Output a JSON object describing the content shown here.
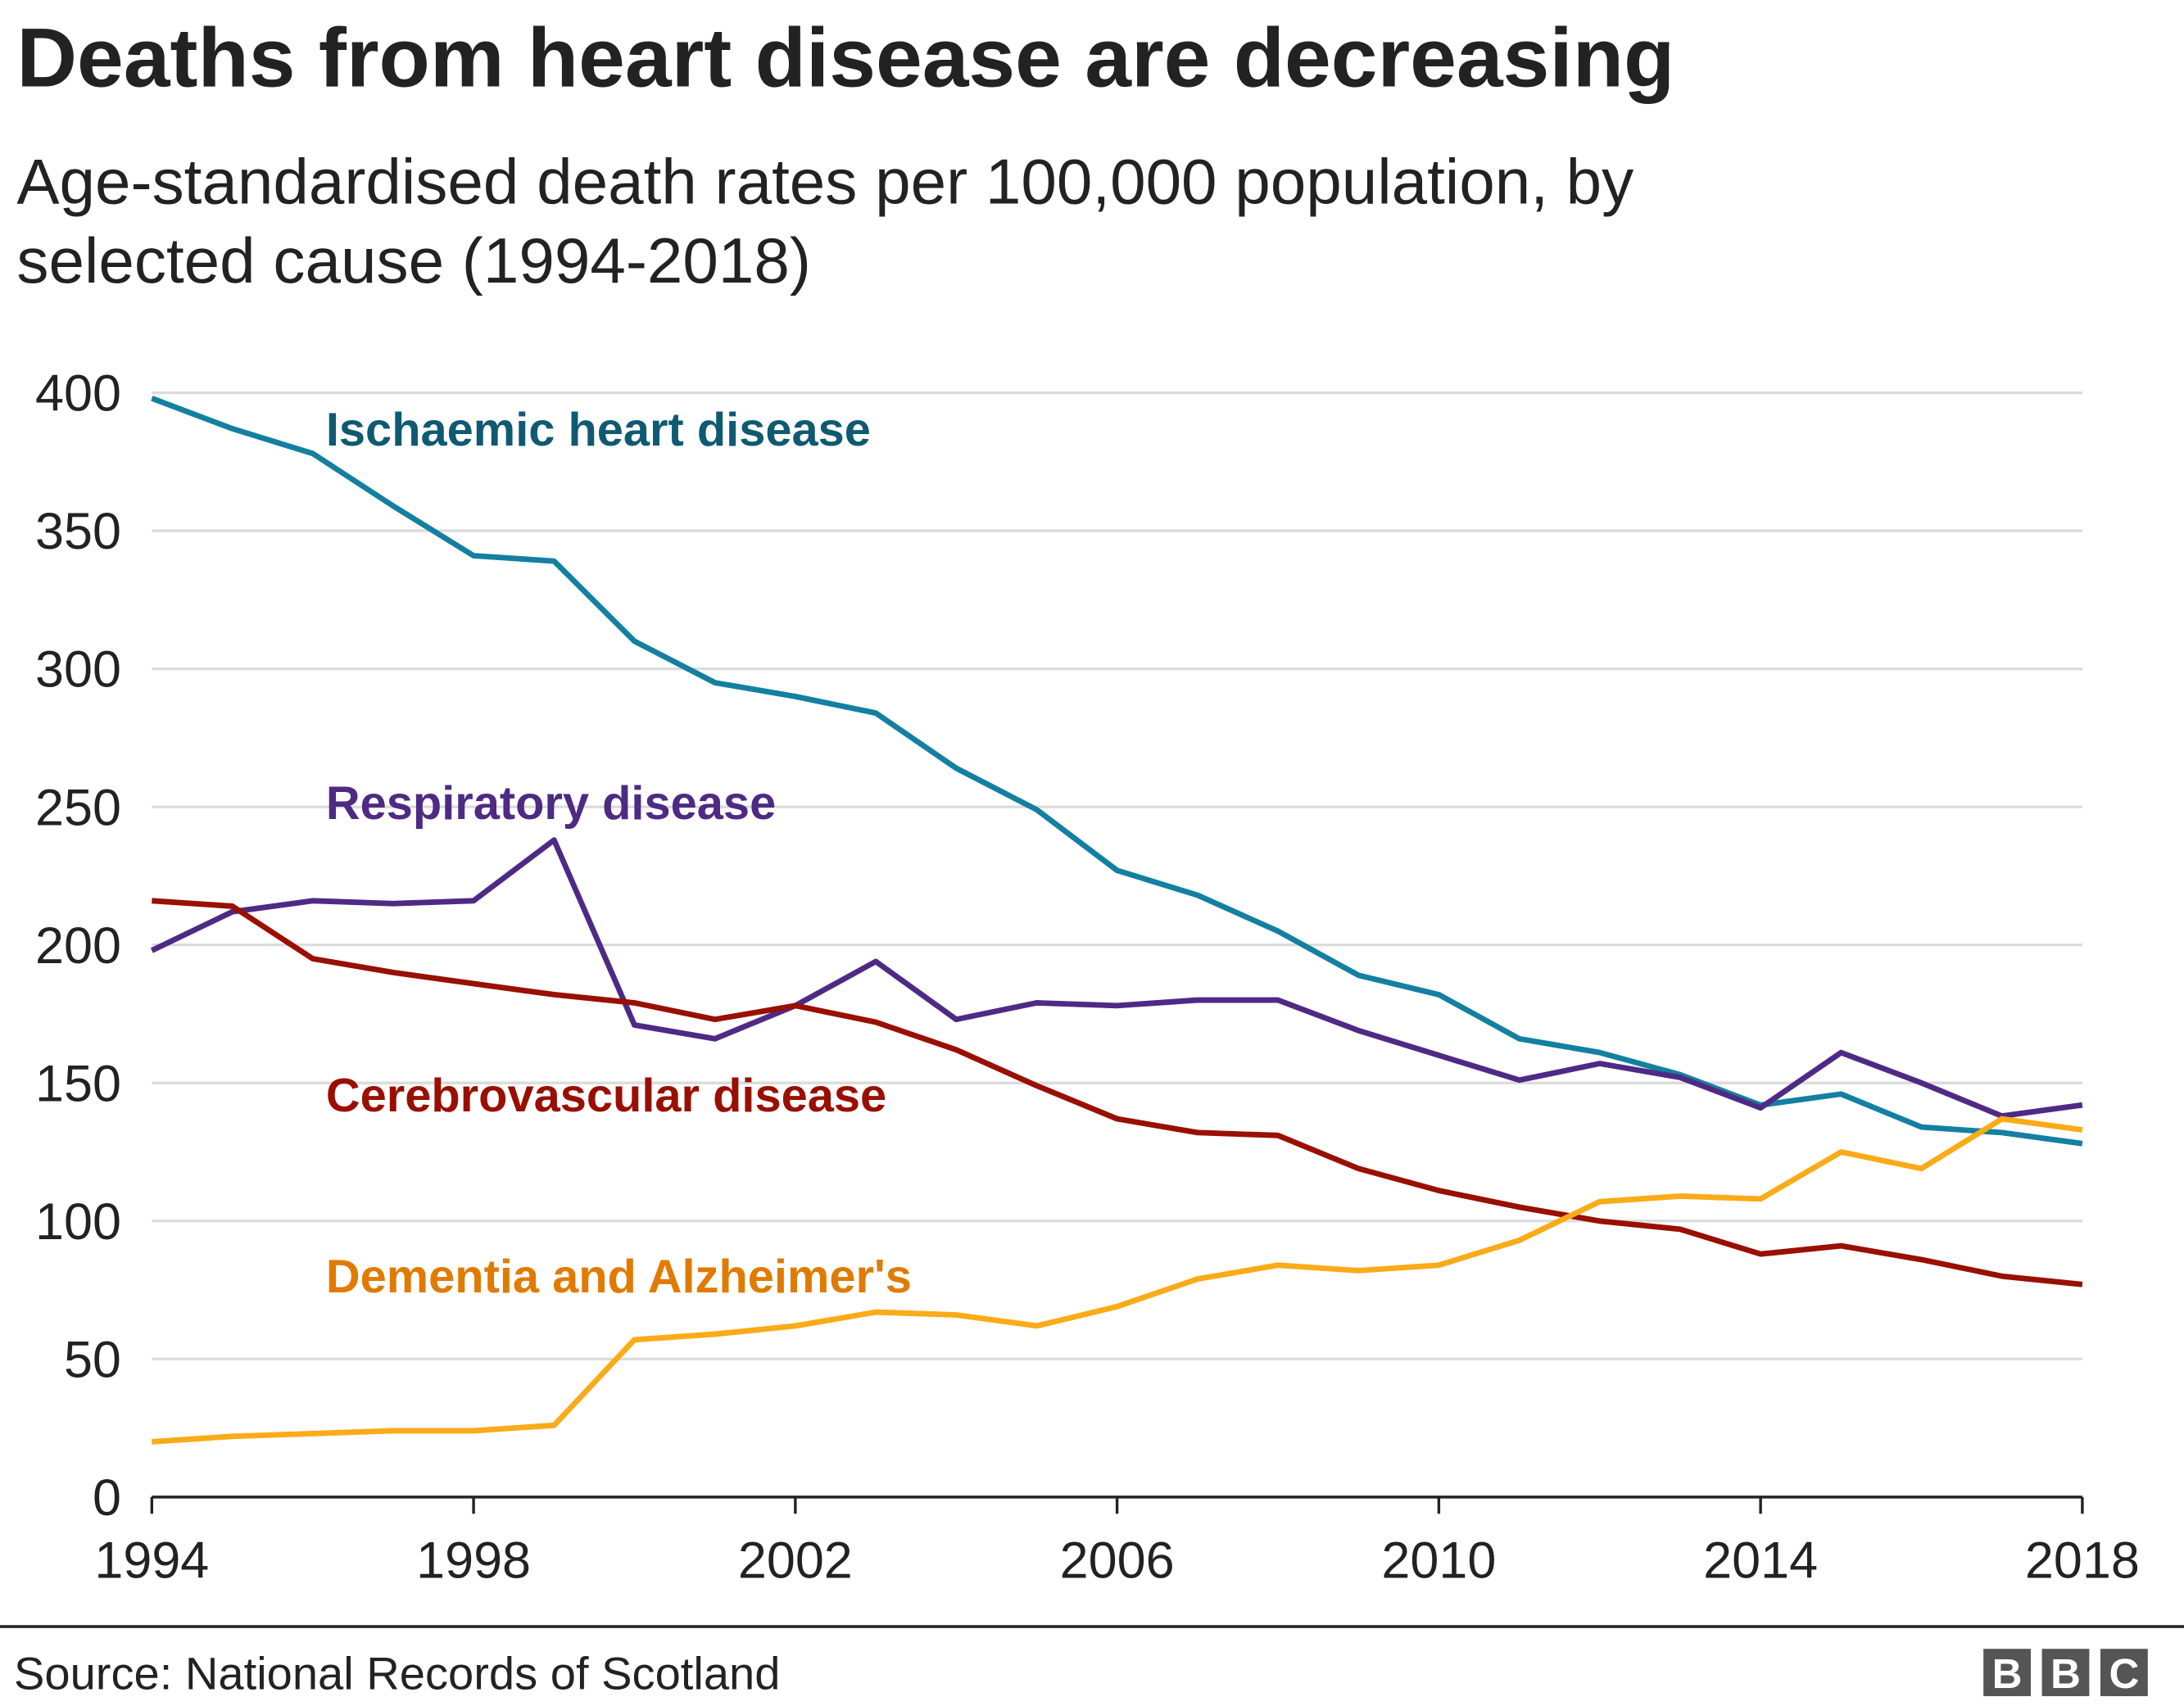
{
  "title": "Deaths from heart disease are decreasing",
  "subtitle_line1": "Age-standardised death rates per 100,000 population, by",
  "subtitle_line2": "selected cause (1994-2018)",
  "source": "Source: National Records of Scotland",
  "logo": "BBC",
  "chart_data": {
    "type": "line",
    "title": "Deaths from heart disease are decreasing",
    "subtitle": "Age-standardised death rates per 100,000 population, by selected cause (1994-2018)",
    "xlabel": "",
    "ylabel": "",
    "xlim": [
      1994,
      2018
    ],
    "ylim": [
      0,
      400
    ],
    "yticks": [
      0,
      50,
      100,
      150,
      200,
      250,
      300,
      350,
      400
    ],
    "xticks": [
      1994,
      1998,
      2002,
      2006,
      2010,
      2014,
      2018
    ],
    "grid": "horizontal",
    "legend": "inline labels",
    "x": [
      1994,
      1995,
      1996,
      1997,
      1998,
      1999,
      2000,
      2001,
      2002,
      2003,
      2004,
      2005,
      2006,
      2007,
      2008,
      2009,
      2010,
      2011,
      2012,
      2013,
      2014,
      2015,
      2016,
      2017,
      2018
    ],
    "series": [
      {
        "name": "Ischaemic heart disease",
        "color": "#1380A1",
        "label_color": "#0F5A72",
        "values": [
          398,
          387,
          378,
          359,
          341,
          339,
          310,
          295,
          290,
          284,
          264,
          249,
          227,
          218,
          205,
          189,
          182,
          166,
          161,
          153,
          142,
          146,
          134,
          132,
          128
        ]
      },
      {
        "name": "Respiratory disease",
        "color": "#4E2A84",
        "label_color": "#4E2A84",
        "values": [
          198,
          212,
          216,
          215,
          216,
          238,
          171,
          166,
          178,
          194,
          173,
          179,
          178,
          180,
          180,
          169,
          160,
          151,
          157,
          152,
          141,
          161,
          150,
          138,
          142
        ]
      },
      {
        "name": "Cerebrovascular disease",
        "color": "#990F00",
        "label_color": "#990F00",
        "values": [
          216,
          214,
          195,
          190,
          186,
          182,
          179,
          173,
          178,
          172,
          162,
          149,
          137,
          132,
          131,
          119,
          111,
          105,
          100,
          97,
          88,
          91,
          86,
          80,
          77
        ]
      },
      {
        "name": "Dementia and Alzheimer's",
        "color": "#FAAB18",
        "label_color": "#E07B00",
        "values": [
          20,
          22,
          23,
          24,
          24,
          26,
          57,
          59,
          62,
          67,
          66,
          62,
          69,
          79,
          84,
          82,
          84,
          93,
          107,
          109,
          108,
          125,
          119,
          137,
          133
        ]
      }
    ]
  }
}
